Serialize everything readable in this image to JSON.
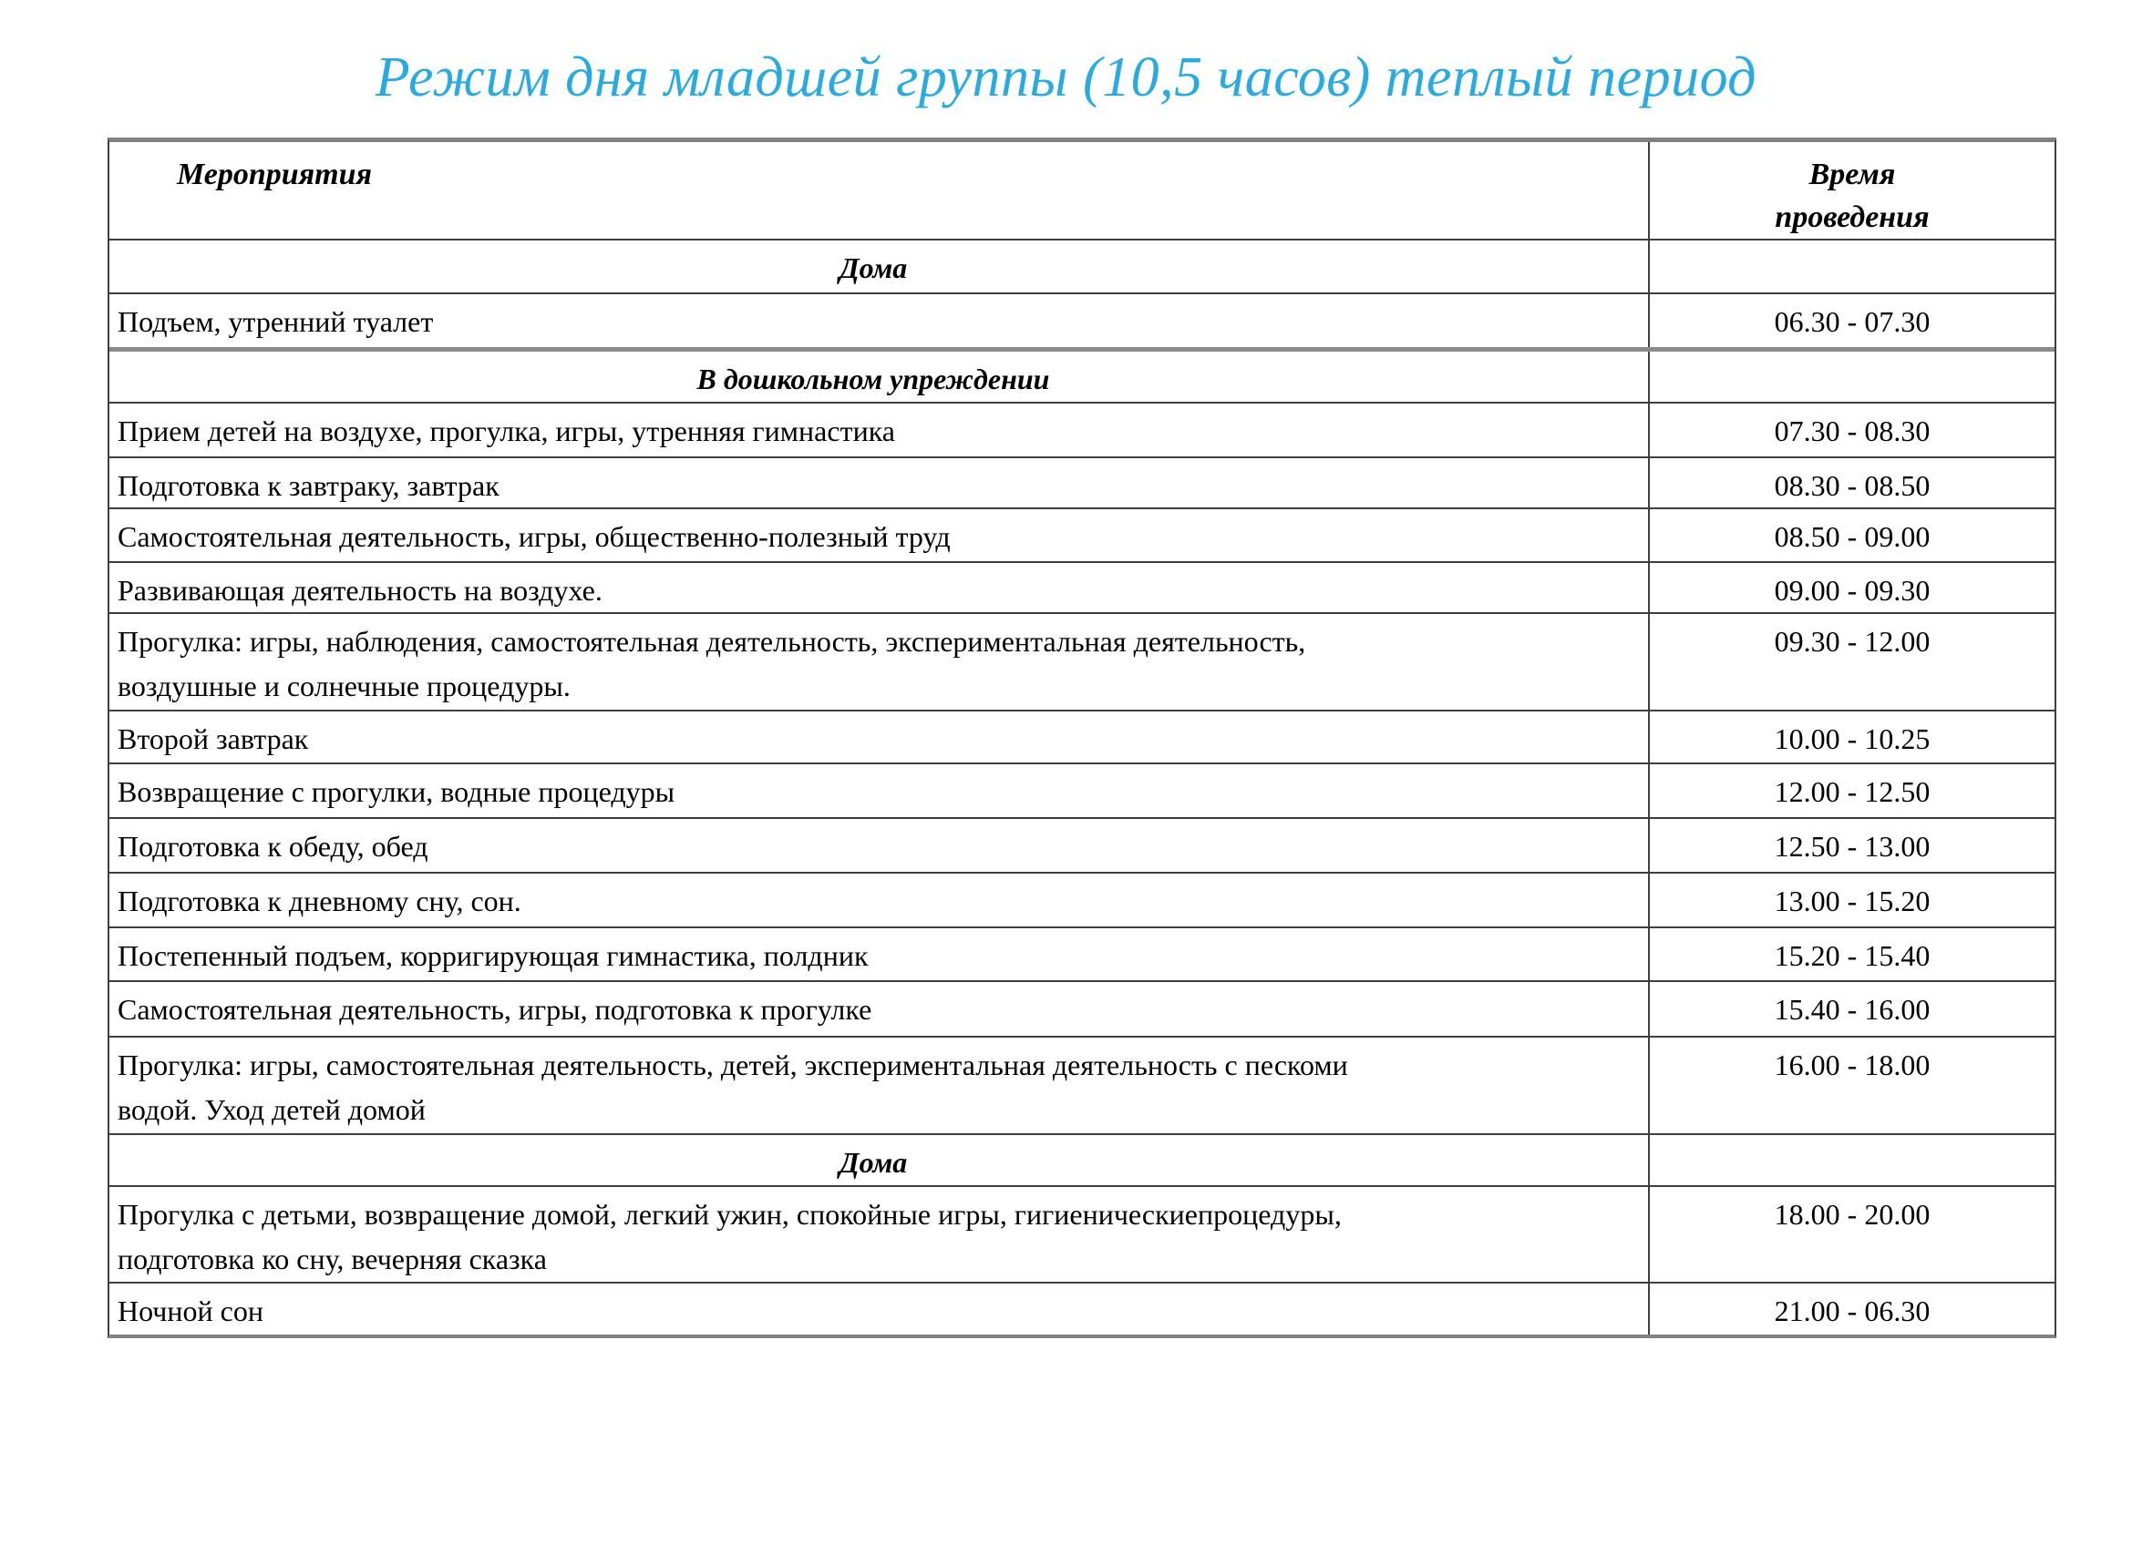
{
  "page": {
    "title": "Режим дня младшей группы (10,5 часов) теплый период",
    "title_color": "#29abe2",
    "background_color": "#ffffff"
  },
  "table": {
    "columns": {
      "activities": "Мероприятия",
      "time": "Время\nпроведения"
    },
    "rows": [
      {
        "type": "section",
        "label": "Дома",
        "time": ""
      },
      {
        "type": "item",
        "label": "Подъем, утренний туалет",
        "time": "06.30 - 07.30"
      },
      {
        "type": "section",
        "label": "В дошкольном упреждении",
        "time": ""
      },
      {
        "type": "item",
        "label": "Прием  детей на воздухе, прогулка, игры, утренняя гимнастика",
        "time": "07.30 - 08.30"
      },
      {
        "type": "item",
        "label": "Подготовка к завтраку, завтрак",
        "time": "08.30 - 08.50"
      },
      {
        "type": "item",
        "label": "Самостоятельная  деятельность, игры, общественно-полезный труд",
        "time": "08.50 - 09.00"
      },
      {
        "type": "item",
        "label": "Развивающая деятельность на воздухе.",
        "time": "09.00 - 09.30"
      },
      {
        "type": "item",
        "label": "Прогулка: игры, наблюдения, самостоятельная деятельность, экспериментальная деятельность,\nвоздушные и солнечные процедуры.",
        "time": "09.30 - 12.00"
      },
      {
        "type": "item",
        "label": "Второй завтрак",
        "time": "10.00 - 10.25"
      },
      {
        "type": "item",
        "label": "Возвращение с прогулки, водные процедуры",
        "time": "12.00 - 12.50"
      },
      {
        "type": "item",
        "label": "Подготовка к обеду, обед",
        "time": "12.50 - 13.00"
      },
      {
        "type": "item",
        "label": "Подготовка к дневному сну, сон.",
        "time": "13.00 - 15.20"
      },
      {
        "type": "item",
        "label": "Постепенный подъем, корригирующая гимнастика, полдник",
        "time": "15.20 - 15.40"
      },
      {
        "type": "item",
        "label": "Самостоятельная деятельность, игры, подготовка к прогулке",
        "time": "15.40 - 16.00"
      },
      {
        "type": "item",
        "label": "Прогулка: игры, самостоятельная деятельность, детей, экспериментальная деятельность с пескоми\nводой. Уход детей домой",
        "time": "16.00 - 18.00"
      },
      {
        "type": "section",
        "label": "Дома",
        "time": ""
      },
      {
        "type": "item",
        "label": "Прогулка с детьми, возвращение домой, легкий ужин, спокойные игры, гигиеническиепроцедуры,\nподготовка ко сну, вечерняя сказка",
        "time": "18.00 - 20.00"
      },
      {
        "type": "item",
        "label": "Ночной сон",
        "time": "21.00 - 06.30"
      }
    ]
  }
}
